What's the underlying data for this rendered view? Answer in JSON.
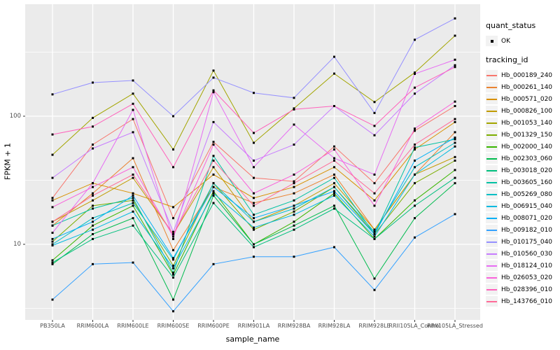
{
  "figure": {
    "background": "#FFFFFF",
    "panel_background": "#EBEBEB",
    "grid_color": "#FFFFFF",
    "tick_color": "#333333",
    "axis_text_color": "#4D4D4D",
    "legend": {
      "quant_status_title": "quant_status",
      "quant_status_label": "OK",
      "quant_status_shape": "black-square-point",
      "tracking_title": "tracking_id"
    }
  },
  "chart_data": {
    "type": "line",
    "title": "",
    "xlabel": "sample_name",
    "ylabel": "FPKM + 1",
    "y_scale": "log10",
    "ylim": [
      2.6,
      760
    ],
    "y_major_ticks": [
      10,
      100
    ],
    "y_minor_gridlines": [
      3.1623,
      31.623,
      316.23
    ],
    "grid": true,
    "legend_position": "right",
    "point_color": "#000000",
    "categories": [
      "PB350LA",
      "RRIM600LA",
      "RRIM600LE",
      "RRIM600SE",
      "RRIM600PE",
      "RRIM901LA",
      "RRIM928BA",
      "RRIM928LA",
      "RRIM928LE",
      "RRII105LA_Control",
      "RRII105LA_Stressed"
    ],
    "series": [
      {
        "name": "Hb_000189_240",
        "color": "#F8766D",
        "values": [
          23,
          60,
          95,
          16,
          63,
          33,
          31,
          58,
          30,
          77,
          120
        ]
      },
      {
        "name": "Hb_000261_140",
        "color": "#EA8331",
        "values": [
          14,
          25,
          47,
          9,
          28,
          21,
          25,
          35,
          13,
          35,
          75
        ]
      },
      {
        "name": "Hb_000571_020",
        "color": "#D89000",
        "values": [
          22,
          30,
          25,
          19.5,
          35,
          23,
          28,
          40,
          22,
          55,
          90
        ]
      },
      {
        "name": "Hb_000826_100",
        "color": "#C09B00",
        "values": [
          15,
          22,
          33,
          12,
          40,
          15,
          20,
          30,
          13,
          35,
          48
        ]
      },
      {
        "name": "Hb_001053_140",
        "color": "#A3A500",
        "values": [
          50,
          97,
          150,
          55,
          227,
          62,
          115,
          215,
          129,
          219,
          425
        ]
      },
      {
        "name": "Hb_001329_150",
        "color": "#7CAE00",
        "values": [
          10.5,
          20,
          22,
          6.8,
          30,
          13,
          18,
          28,
          12,
          30,
          45
        ]
      },
      {
        "name": "Hb_002000_140",
        "color": "#39B600",
        "values": [
          7.5,
          14,
          20,
          5.8,
          26,
          10,
          15,
          25,
          11,
          22,
          38
        ]
      },
      {
        "name": "Hb_002303_060",
        "color": "#00BB4E",
        "values": [
          7,
          12,
          16,
          3.7,
          24,
          10,
          14,
          20,
          5.4,
          16,
          30
        ]
      },
      {
        "name": "Hb_003018_020",
        "color": "#00BF7D",
        "values": [
          7.2,
          11,
          14,
          5.5,
          21,
          9.5,
          13,
          19,
          11,
          20,
          33
        ]
      },
      {
        "name": "Hb_003605_160",
        "color": "#00C1A3",
        "values": [
          14,
          19,
          23,
          6,
          49,
          17,
          22,
          33,
          12,
          57,
          66
        ]
      },
      {
        "name": "Hb_005269_080",
        "color": "#00BFC4",
        "values": [
          10,
          16,
          21,
          7.6,
          30,
          15,
          19,
          28,
          12.5,
          40,
          62
        ]
      },
      {
        "name": "Hb_006915_040",
        "color": "#00BAE0",
        "values": [
          9.8,
          13,
          18,
          6.5,
          25,
          13.5,
          17,
          24,
          11.5,
          35,
          58
        ]
      },
      {
        "name": "Hb_008071_020",
        "color": "#00B0F6",
        "values": [
          11,
          15,
          24,
          7.8,
          28,
          16,
          20,
          26,
          12,
          45,
          68
        ]
      },
      {
        "name": "Hb_009182_010",
        "color": "#35A2FF",
        "values": [
          3.7,
          7,
          7.2,
          3,
          7,
          8,
          8,
          9.5,
          4.4,
          11.3,
          17.2
        ]
      },
      {
        "name": "Hb_010175_040",
        "color": "#9590FF",
        "values": [
          148,
          183,
          190,
          100,
          200,
          152,
          139,
          291,
          106,
          395,
          580
        ]
      },
      {
        "name": "Hb_010560_030",
        "color": "#C77CFF",
        "values": [
          33,
          56,
          75,
          12.5,
          90,
          45,
          60,
          120,
          71,
          150,
          250
        ]
      },
      {
        "name": "Hb_018124_010",
        "color": "#E76BF3",
        "values": [
          12.3,
          30,
          112,
          11,
          154,
          40,
          86,
          47,
          35,
          214,
          276
        ]
      },
      {
        "name": "Hb_026053_020",
        "color": "#FA62DB",
        "values": [
          19.5,
          28,
          40,
          11.5,
          60,
          25,
          35,
          55,
          20,
          80,
          130
        ]
      },
      {
        "name": "Hb_028396_010",
        "color": "#FF62BC",
        "values": [
          72,
          83,
          125,
          40,
          159,
          74,
          113,
          120,
          84,
          167,
          242
        ]
      },
      {
        "name": "Hb_143766_010",
        "color": "#FF6A98",
        "values": [
          15,
          24,
          35,
          12,
          45,
          20,
          30,
          45,
          25,
          60,
          95
        ]
      }
    ]
  }
}
